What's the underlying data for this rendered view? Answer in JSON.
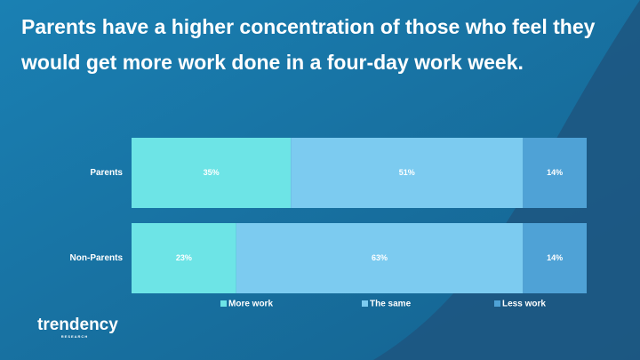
{
  "chart_data": {
    "type": "stacked-bar-horizontal",
    "title": "Parents have a higher concentration of those who feel they would get more work done in a four-day work week.",
    "categories": [
      "Parents",
      "Non-Parents"
    ],
    "series": [
      {
        "name": "More work",
        "color": "#6de4e6",
        "values": [
          35,
          23
        ],
        "value_labels": [
          "35%",
          "23%"
        ]
      },
      {
        "name": "The same",
        "color": "#7ccbf0",
        "values": [
          51,
          63
        ],
        "value_labels": [
          "51%",
          "63%"
        ]
      },
      {
        "name": "Less work",
        "color": "#4fa2d6",
        "values": [
          14,
          14
        ],
        "value_labels": [
          "14%",
          "14%"
        ]
      }
    ],
    "xlim": [
      0,
      100
    ],
    "legend": "bottom",
    "logo": "trendency",
    "logo_subtitle": "RESEARCH"
  }
}
